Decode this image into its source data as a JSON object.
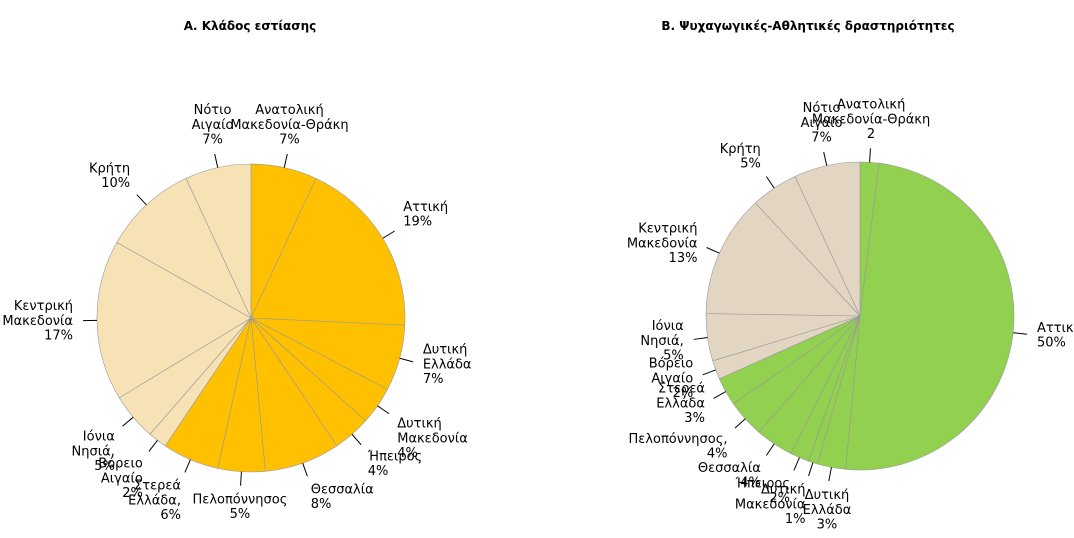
{
  "chart_data": [
    {
      "type": "pie",
      "title": "Α. Κλάδος εστίασης",
      "categories": [
        "Ανατολική Μακεδονία-Θράκη",
        "Αττική",
        "Δυτική Ελλάδα",
        "Δυτική Μακεδονία",
        "Ήπειρος",
        "Θεσσαλία",
        "Πελοπόννησος",
        "Στερεά Ελλάδα,",
        "Βόρειο Αιγαίο",
        "Ιόνια Νησιά,",
        "Κεντρική Μακεδονία",
        "Κρήτη",
        "Νότιο Αιγαίο"
      ],
      "values": [
        7,
        19,
        7,
        4,
        4,
        8,
        5,
        6,
        2,
        5,
        17,
        10,
        7
      ],
      "value_labels": [
        "7%",
        "19%",
        "7%",
        "4%",
        "4%",
        "8%",
        "5%",
        "6%",
        "2%",
        "5%",
        "17%",
        "10%",
        "7%"
      ],
      "colors": [
        "#ffc000",
        "#ffc000",
        "#ffc000",
        "#ffc000",
        "#ffc000",
        "#ffc000",
        "#ffc000",
        "#ffc000",
        "#f7e2b6",
        "#f7e2b6",
        "#f7e2b6",
        "#f7e2b6",
        "#f7e2b6"
      ]
    },
    {
      "type": "pie",
      "title": "Β. Ψυχαγωγικές-Αθλητικές δραστηριότητες",
      "categories": [
        "Ανατολική Μακεδονία-Θράκη",
        "Αττική",
        "Δυτική Ελλάδα",
        "Δυτική Μακεδονία",
        "Ήπειρος",
        "Θεσσαλία",
        "Πελοπόννησος,",
        "Στερεά Ελλάδα",
        "Βόρειο Αιγαίο",
        "Ιόνια Νησιά,",
        "Κεντρική Μακεδονία",
        "Κρήτη",
        "Νότιο Αιγαίο"
      ],
      "values": [
        2,
        50,
        3,
        1,
        2,
        4,
        4,
        3,
        2,
        5,
        13,
        5,
        7
      ],
      "value_labels": [
        "2",
        "50%",
        "3%",
        "1%",
        "2%",
        "4%",
        "4%",
        "3%",
        "2%",
        "5%",
        "13%",
        "5%",
        "7%"
      ],
      "colors": [
        "#92d050",
        "#92d050",
        "#92d050",
        "#92d050",
        "#92d050",
        "#92d050",
        "#92d050",
        "#92d050",
        "#e2d6c2",
        "#e2d6c2",
        "#e2d6c2",
        "#e2d6c2",
        "#e2d6c2"
      ]
    }
  ]
}
